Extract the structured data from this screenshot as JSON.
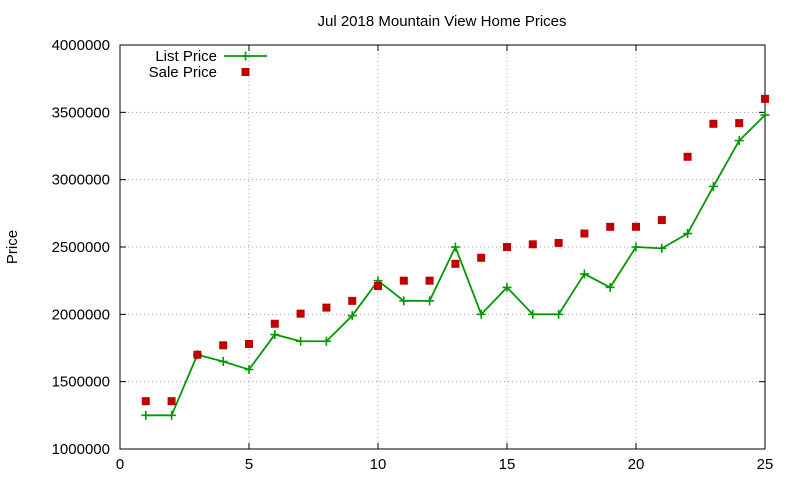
{
  "chart_data": {
    "type": "line",
    "title": "Jul 2018 Mountain View Home Prices",
    "xlabel": "",
    "ylabel": "Price",
    "xlim": [
      0,
      25
    ],
    "ylim": [
      1000000,
      4000000
    ],
    "x_ticks": [
      0,
      5,
      10,
      15,
      20,
      25
    ],
    "y_ticks": [
      1000000,
      1500000,
      2000000,
      2500000,
      3000000,
      3500000,
      4000000
    ],
    "x_tick_labels": [
      "0",
      "5",
      "10",
      "15",
      "20",
      "25"
    ],
    "y_tick_labels": [
      "1000000",
      "1500000",
      "2000000",
      "2500000",
      "3000000",
      "3500000",
      "4000000"
    ],
    "grid": true,
    "legend_position": "top-left",
    "series": [
      {
        "name": "List Price",
        "type": "line",
        "marker": "plus",
        "color": "#009900",
        "x": [
          1,
          2,
          3,
          4,
          5,
          6,
          7,
          8,
          9,
          10,
          11,
          12,
          13,
          14,
          15,
          16,
          17,
          18,
          19,
          20,
          21,
          22,
          23,
          24,
          25
        ],
        "y": [
          1250000,
          1250000,
          1700000,
          1650000,
          1590000,
          1850000,
          1800000,
          1800000,
          1990000,
          2250000,
          2100000,
          2100000,
          2500000,
          2000000,
          2200000,
          2000000,
          2000000,
          2300000,
          2200000,
          2500000,
          2490000,
          2600000,
          2950000,
          3290000,
          3480000
        ]
      },
      {
        "name": "Sale Price",
        "type": "scatter",
        "marker": "square",
        "color": "#c00000",
        "x": [
          1,
          2,
          3,
          4,
          5,
          6,
          7,
          8,
          9,
          10,
          11,
          12,
          13,
          14,
          15,
          16,
          17,
          18,
          19,
          20,
          21,
          22,
          23,
          24,
          25
        ],
        "y": [
          1355000,
          1355000,
          1700000,
          1770000,
          1780000,
          1930000,
          2005000,
          2050000,
          2100000,
          2210000,
          2250000,
          2250000,
          2375000,
          2420000,
          2500000,
          2520000,
          2530000,
          2600000,
          2650000,
          2650000,
          2700000,
          3170000,
          3415000,
          3420000,
          3600000
        ]
      }
    ]
  }
}
